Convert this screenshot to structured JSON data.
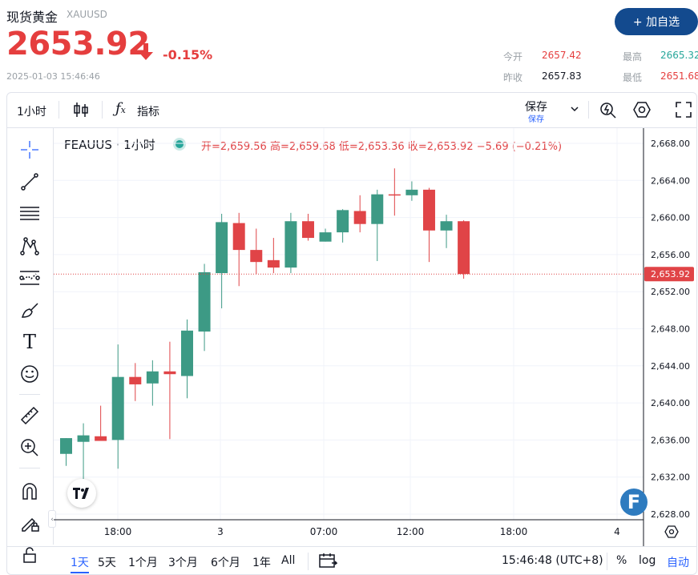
{
  "header": {
    "name": "现货黄金",
    "symbol": "XAUUSD",
    "price": "2653.92",
    "change_pct": "-0.15%",
    "datetime": "2025-01-03 15:46:46",
    "add_button": "+ 加自选",
    "stats": {
      "open_label": "今开",
      "open": "2657.42",
      "high_label": "最高",
      "high": "2665.32",
      "prev_label": "昨收",
      "prev": "2657.83",
      "low_label": "最低",
      "low": "2651.68"
    }
  },
  "toolbar": {
    "interval": "1小时",
    "indicators": "指标",
    "save": "保存",
    "save_sub": "保存"
  },
  "legend": {
    "title": "FEAUUS · 1小时",
    "open": "开=2,659.56",
    "high": "高=2,659.68",
    "low": "低=2,653.36",
    "close": "收=2,653.92",
    "change": "−5.69 (−0.21%)"
  },
  "chart_data": {
    "type": "candlestick",
    "ylim": [
      2626,
      2670
    ],
    "yticks": [
      "2,668.00",
      "2,664.00",
      "2,660.00",
      "2,656.00",
      "2,652.00",
      "2,648.00",
      "2,644.00",
      "2,640.00",
      "2,636.00",
      "2,632.00",
      "2,628.00"
    ],
    "last_price_label": "2,653.92",
    "xticks": [
      "18:00",
      "3",
      "07:00",
      "12:00",
      "18:00",
      "4"
    ],
    "candles": [
      {
        "o": 2634.5,
        "h": 2636.2,
        "l": 2633.2,
        "c": 2636.2
      },
      {
        "o": 2635.8,
        "h": 2637.8,
        "l": 2631.8,
        "c": 2636.5
      },
      {
        "o": 2636.4,
        "h": 2639.7,
        "l": 2636.0,
        "c": 2635.9
      },
      {
        "o": 2636.0,
        "h": 2646.3,
        "l": 2632.9,
        "c": 2642.8
      },
      {
        "o": 2642.8,
        "h": 2644.3,
        "l": 2640.2,
        "c": 2642.0
      },
      {
        "o": 2642.1,
        "h": 2644.6,
        "l": 2639.7,
        "c": 2643.4
      },
      {
        "o": 2643.4,
        "h": 2646.6,
        "l": 2636.1,
        "c": 2643.1
      },
      {
        "o": 2642.9,
        "h": 2649.0,
        "l": 2640.5,
        "c": 2647.8
      },
      {
        "o": 2647.7,
        "h": 2655.0,
        "l": 2645.6,
        "c": 2654.1
      },
      {
        "o": 2654.0,
        "h": 2660.4,
        "l": 2650.2,
        "c": 2659.5
      },
      {
        "o": 2659.4,
        "h": 2660.5,
        "l": 2652.6,
        "c": 2656.5
      },
      {
        "o": 2656.5,
        "h": 2658.8,
        "l": 2653.9,
        "c": 2655.2
      },
      {
        "o": 2655.4,
        "h": 2657.8,
        "l": 2654.0,
        "c": 2654.6
      },
      {
        "o": 2654.6,
        "h": 2660.5,
        "l": 2654.0,
        "c": 2659.6
      },
      {
        "o": 2659.6,
        "h": 2660.4,
        "l": 2657.5,
        "c": 2657.8
      },
      {
        "o": 2657.4,
        "h": 2658.8,
        "l": 2657.4,
        "c": 2658.4
      },
      {
        "o": 2658.4,
        "h": 2660.9,
        "l": 2657.3,
        "c": 2660.8
      },
      {
        "o": 2660.7,
        "h": 2662.4,
        "l": 2658.4,
        "c": 2659.3
      },
      {
        "o": 2659.3,
        "h": 2663.0,
        "l": 2655.3,
        "c": 2662.5
      },
      {
        "o": 2662.5,
        "h": 2665.3,
        "l": 2660.2,
        "c": 2662.4
      },
      {
        "o": 2662.4,
        "h": 2663.9,
        "l": 2661.8,
        "c": 2663.0
      },
      {
        "o": 2663.0,
        "h": 2663.2,
        "l": 2655.2,
        "c": 2658.6
      },
      {
        "o": 2658.6,
        "h": 2660.3,
        "l": 2656.7,
        "c": 2659.6
      },
      {
        "o": 2659.6,
        "h": 2659.7,
        "l": 2653.4,
        "c": 2653.9
      }
    ]
  },
  "bottom": {
    "ranges": [
      "1天",
      "5天",
      "1个月",
      "3个月",
      "6个月",
      "1年",
      "All"
    ],
    "clock": "15:46:48 (UTC+8)",
    "pct": "%",
    "log": "log",
    "auto": "自动"
  },
  "colors": {
    "up": "#3d9a85",
    "down": "#e04447",
    "accent": "#134a8e"
  }
}
